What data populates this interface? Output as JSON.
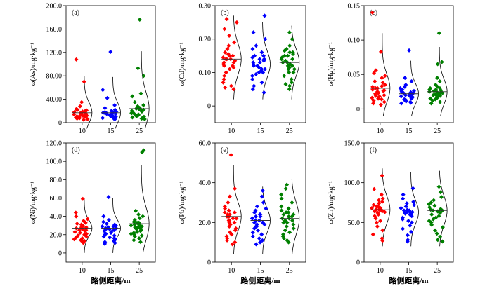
{
  "chart_data": [
    {
      "type": "scatter",
      "panel_label": "(a)",
      "ylabel": "ω(As)/mg·kg⁻¹",
      "xlabel": "",
      "categories": [
        "10",
        "15",
        "25"
      ],
      "ylim": [
        0,
        200
      ],
      "yticks": [
        "0",
        "40.00",
        "80.00",
        "120.0",
        "160.0",
        "200.0"
      ],
      "ytick_values": [
        0,
        40,
        80,
        120,
        160,
        200
      ],
      "medians": [
        17,
        17,
        24
      ],
      "curves": [
        {
          "center": 17,
          "sd": 18,
          "lo": -10,
          "hi": 80
        },
        {
          "center": 17,
          "sd": 18,
          "lo": -10,
          "hi": 78
        },
        {
          "center": 24,
          "sd": 28,
          "lo": -10,
          "hi": 122
        }
      ],
      "series": [
        {
          "color": "#ff0000",
          "values": [
            108,
            70,
            35,
            28,
            22,
            20,
            18,
            17,
            16,
            15,
            14,
            13,
            12,
            11,
            10,
            9,
            8,
            7,
            6,
            5,
            14,
            16,
            18,
            19,
            12,
            11,
            10,
            9,
            21,
            23
          ]
        },
        {
          "color": "#0000ff",
          "values": [
            121,
            56,
            42,
            30,
            25,
            22,
            20,
            18,
            17,
            16,
            15,
            14,
            13,
            12,
            11,
            10,
            9,
            8,
            7,
            6,
            15,
            17,
            19,
            13,
            12,
            11,
            10,
            14,
            16,
            18
          ]
        },
        {
          "color": "#008000",
          "values": [
            176,
            93,
            80,
            50,
            45,
            35,
            30,
            25,
            22,
            20,
            18,
            17,
            16,
            15,
            14,
            13,
            12,
            11,
            10,
            9,
            8,
            7,
            6,
            19,
            21,
            23,
            24,
            26,
            28,
            20
          ]
        }
      ]
    },
    {
      "type": "scatter",
      "panel_label": "(b)",
      "ylabel": "ω(Cd)/mg·kg⁻¹",
      "xlabel": "",
      "categories": [
        "10",
        "15",
        "25"
      ],
      "ylim": [
        -0.05,
        0.3
      ],
      "yticks": [
        "0",
        "0.10",
        "0.20",
        "0.30"
      ],
      "ytick_values": [
        0,
        0.1,
        0.2,
        0.3
      ],
      "medians": [
        0.14,
        0.125,
        0.13
      ],
      "curves": [
        {
          "center": 0.14,
          "sd": 0.045,
          "lo": 0.02,
          "hi": 0.27
        },
        {
          "center": 0.125,
          "sd": 0.04,
          "lo": 0.02,
          "hi": 0.25
        },
        {
          "center": 0.13,
          "sd": 0.04,
          "lo": 0.02,
          "hi": 0.24
        }
      ],
      "series": [
        {
          "color": "#ff0000",
          "values": [
            0.26,
            0.25,
            0.23,
            0.21,
            0.19,
            0.18,
            0.17,
            0.16,
            0.155,
            0.15,
            0.145,
            0.14,
            0.14,
            0.135,
            0.13,
            0.125,
            0.12,
            0.115,
            0.11,
            0.1,
            0.09,
            0.08,
            0.07,
            0.06,
            0.055,
            0.05,
            0.15,
            0.14,
            0.13,
            0.12
          ]
        },
        {
          "color": "#0000ff",
          "values": [
            0.27,
            0.22,
            0.2,
            0.18,
            0.17,
            0.16,
            0.15,
            0.145,
            0.14,
            0.135,
            0.13,
            0.125,
            0.12,
            0.115,
            0.11,
            0.105,
            0.1,
            0.095,
            0.09,
            0.08,
            0.07,
            0.06,
            0.05,
            0.04,
            0.13,
            0.12,
            0.11,
            0.14,
            0.15,
            0.1
          ]
        },
        {
          "color": "#008000",
          "values": [
            0.22,
            0.2,
            0.18,
            0.17,
            0.165,
            0.16,
            0.155,
            0.15,
            0.145,
            0.14,
            0.135,
            0.13,
            0.125,
            0.12,
            0.115,
            0.11,
            0.1,
            0.09,
            0.08,
            0.07,
            0.065,
            0.06,
            0.05,
            0.14,
            0.13,
            0.12,
            0.15,
            0.16,
            0.11,
            0.1
          ]
        }
      ]
    },
    {
      "type": "scatter",
      "panel_label": "(c)",
      "ylabel": "ω(Hg)/mg·kg⁻¹",
      "xlabel": "",
      "categories": [
        "10",
        "15",
        "25"
      ],
      "ylim": [
        -0.02,
        0.15
      ],
      "yticks": [
        "0",
        "0.05",
        "0.10",
        "0.15"
      ],
      "ytick_values": [
        0,
        0.05,
        0.1,
        0.15
      ],
      "medians": [
        0.03,
        0.022,
        0.025
      ],
      "curves": [
        {
          "center": 0.03,
          "sd": 0.02,
          "lo": -0.01,
          "hi": 0.11
        },
        {
          "center": 0.022,
          "sd": 0.015,
          "lo": -0.01,
          "hi": 0.07
        },
        {
          "center": 0.025,
          "sd": 0.018,
          "lo": -0.01,
          "hi": 0.09
        }
      ],
      "series": [
        {
          "color": "#ff0000",
          "values": [
            0.14,
            0.083,
            0.056,
            0.052,
            0.048,
            0.045,
            0.04,
            0.038,
            0.035,
            0.032,
            0.03,
            0.028,
            0.026,
            0.025,
            0.024,
            0.022,
            0.02,
            0.018,
            0.016,
            0.015,
            0.014,
            0.012,
            0.01,
            0.008,
            0.006,
            0.03,
            0.027,
            0.023,
            0.019,
            0.033
          ]
        },
        {
          "color": "#0000ff",
          "values": [
            0.085,
            0.045,
            0.04,
            0.035,
            0.032,
            0.03,
            0.028,
            0.026,
            0.024,
            0.023,
            0.022,
            0.021,
            0.02,
            0.019,
            0.018,
            0.017,
            0.016,
            0.015,
            0.014,
            0.013,
            0.012,
            0.011,
            0.01,
            0.009,
            0.008,
            0.025,
            0.027,
            0.02,
            0.018,
            0.022
          ]
        },
        {
          "color": "#008000",
          "values": [
            0.11,
            0.068,
            0.065,
            0.045,
            0.04,
            0.035,
            0.032,
            0.03,
            0.028,
            0.027,
            0.026,
            0.025,
            0.024,
            0.023,
            0.022,
            0.021,
            0.02,
            0.019,
            0.018,
            0.017,
            0.016,
            0.015,
            0.014,
            0.012,
            0.01,
            0.008,
            0.028,
            0.024,
            0.02,
            0.03
          ]
        }
      ]
    },
    {
      "type": "scatter",
      "panel_label": "(d)",
      "ylabel": "ω(Ni)/mg·kg⁻¹",
      "xlabel": "路侧距离/m",
      "categories": [
        "10",
        "15",
        "25"
      ],
      "ylim": [
        -10,
        120
      ],
      "yticks": [
        "0",
        "20.0",
        "40.0",
        "60.0",
        "80.0",
        "100.0",
        "120.0"
      ],
      "ytick_values": [
        0,
        20,
        40,
        60,
        80,
        100,
        120
      ],
      "medians": [
        27,
        27,
        32
      ],
      "curves": [
        {
          "center": 27,
          "sd": 9,
          "lo": 0,
          "hi": 60
        },
        {
          "center": 27,
          "sd": 9,
          "lo": 0,
          "hi": 60
        },
        {
          "center": 32,
          "sd": 18,
          "lo": 0,
          "hi": 96
        }
      ],
      "series": [
        {
          "color": "#ff0000",
          "values": [
            59,
            44,
            40,
            37,
            35,
            33,
            32,
            31,
            30,
            29,
            28,
            27,
            26,
            25,
            24,
            23,
            22,
            21,
            20,
            19,
            18,
            17,
            16,
            15,
            14,
            13,
            12,
            11,
            28,
            25
          ]
        },
        {
          "color": "#0000ff",
          "values": [
            61,
            40,
            36,
            34,
            32,
            31,
            30,
            29,
            28,
            27,
            26,
            25,
            24,
            23,
            22,
            21,
            20,
            19,
            18,
            17,
            16,
            15,
            14,
            13,
            12,
            11,
            10,
            27,
            26,
            29
          ]
        },
        {
          "color": "#008000",
          "values": [
            112,
            110,
            46,
            42,
            40,
            38,
            36,
            34,
            33,
            32,
            31,
            30,
            29,
            28,
            27,
            26,
            25,
            24,
            23,
            22,
            21,
            20,
            19,
            18,
            16,
            14,
            12,
            30,
            33,
            28
          ]
        }
      ]
    },
    {
      "type": "scatter",
      "panel_label": "(e)",
      "ylabel": "ω(Pb)/mg·kg⁻¹",
      "xlabel": "路侧距离/m",
      "categories": [
        "10",
        "15",
        "25"
      ],
      "ylim": [
        0,
        60
      ],
      "yticks": [
        "0",
        "20.0",
        "40.0",
        "60.0"
      ],
      "ytick_values": [
        0,
        20,
        40,
        60
      ],
      "medians": [
        23,
        21,
        22
      ],
      "curves": [
        {
          "center": 23,
          "sd": 7,
          "lo": 4,
          "hi": 49
        },
        {
          "center": 21,
          "sd": 6,
          "lo": 4,
          "hi": 38
        },
        {
          "center": 22,
          "sd": 8,
          "lo": 4,
          "hi": 42
        }
      ],
      "series": [
        {
          "color": "#ff0000",
          "values": [
            54,
            37,
            33,
            30,
            28,
            27,
            26,
            25,
            24,
            23,
            22,
            21,
            20,
            19,
            18,
            17,
            16,
            15,
            14,
            13,
            12,
            11,
            10,
            9,
            22,
            23,
            24,
            21,
            20,
            25
          ]
        },
        {
          "color": "#0000ff",
          "values": [
            36,
            33,
            30,
            28,
            27,
            26,
            25,
            24,
            23,
            22,
            21,
            20,
            19,
            18,
            17,
            16,
            15,
            14,
            13,
            12,
            11,
            10,
            9,
            21,
            22,
            20,
            23,
            19,
            24,
            18
          ]
        },
        {
          "color": "#008000",
          "values": [
            39,
            37,
            34,
            32,
            30,
            28,
            27,
            26,
            25,
            24,
            23,
            22,
            21,
            20,
            19,
            18,
            17,
            16,
            15,
            14,
            13,
            12,
            11,
            10,
            22,
            23,
            24,
            21,
            20,
            25
          ]
        }
      ]
    },
    {
      "type": "scatter",
      "panel_label": "(f)",
      "ylabel": "ω(Zn)/mg·kg⁻¹",
      "xlabel": "路侧距离/m",
      "categories": [
        "10",
        "15",
        "25"
      ],
      "ylim": [
        0,
        150
      ],
      "yticks": [
        "0",
        "50.0",
        "100.0",
        "150.0"
      ],
      "ytick_values": [
        0,
        50,
        100,
        150
      ],
      "medians": [
        66,
        63,
        65
      ],
      "curves": [
        {
          "center": 66,
          "sd": 17,
          "lo": 20,
          "hi": 118
        },
        {
          "center": 63,
          "sd": 15,
          "lo": 20,
          "hi": 113
        },
        {
          "center": 65,
          "sd": 18,
          "lo": 20,
          "hi": 115
        }
      ],
      "series": [
        {
          "color": "#ff0000",
          "values": [
            109,
            92,
            85,
            80,
            78,
            76,
            74,
            72,
            70,
            68,
            67,
            66,
            65,
            64,
            63,
            62,
            60,
            58,
            55,
            52,
            50,
            45,
            40,
            35,
            30,
            27,
            70,
            68,
            64,
            66
          ]
        },
        {
          "color": "#0000ff",
          "values": [
            93,
            85,
            80,
            76,
            74,
            72,
            70,
            68,
            66,
            65,
            64,
            63,
            62,
            61,
            60,
            58,
            56,
            54,
            52,
            50,
            46,
            42,
            38,
            34,
            28,
            26,
            63,
            62,
            65,
            60
          ]
        },
        {
          "color": "#008000",
          "values": [
            95,
            88,
            82,
            78,
            75,
            73,
            71,
            69,
            67,
            66,
            65,
            64,
            63,
            62,
            60,
            58,
            56,
            54,
            52,
            50,
            47,
            44,
            40,
            36,
            32,
            28,
            26,
            65,
            64,
            66
          ]
        }
      ]
    }
  ]
}
